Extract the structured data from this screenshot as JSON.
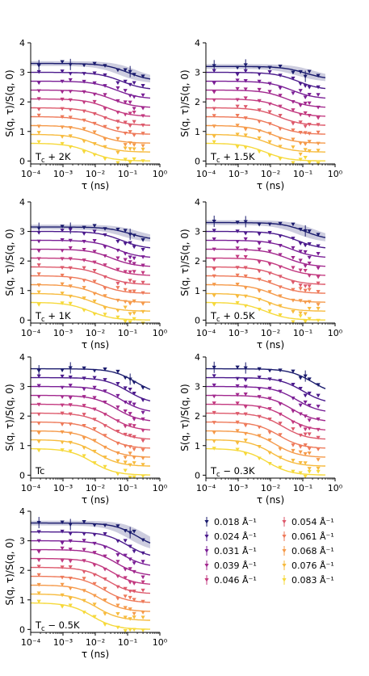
{
  "chart_data": {
    "type": "scatter",
    "xscale": "log",
    "xlim": [
      0.0001,
      1
    ],
    "ylim": [
      -0.1,
      4
    ],
    "xlabel": "τ (ns)",
    "ylabel": "S(q, τ)/S(q, 0)",
    "x_ticks": [
      0.0001,
      0.001,
      0.01,
      0.1,
      1
    ],
    "x_tick_labels": [
      "10⁻⁴",
      "10⁻³",
      "10⁻²",
      "10⁻¹",
      "10⁰"
    ],
    "y_ticks": [
      0,
      1,
      2,
      3,
      4
    ],
    "y_tick_labels": [
      "0",
      "1",
      "2",
      "3",
      "4"
    ],
    "tau_points": [
      0.00018,
      0.00095,
      0.0017,
      0.0045,
      0.0095,
      0.02,
      0.05,
      0.085,
      0.12,
      0.16,
      0.3
    ],
    "legend": {
      "placement": "bottom-right",
      "columns": 2,
      "entries": [
        "0.018 Å⁻¹",
        "0.024 Å⁻¹",
        "0.031 Å⁻¹",
        "0.039 Å⁻¹",
        "0.046 Å⁻¹",
        "0.054 Å⁻¹",
        "0.061 Å⁻¹",
        "0.068 Å⁻¹",
        "0.076 Å⁻¹",
        "0.083 Å⁻¹"
      ],
      "colors": [
        "#1b1c6e",
        "#4b1a8c",
        "#7a1f96",
        "#a2288e",
        "#c33a80",
        "#dd5a6c",
        "#ee7a5a",
        "#f59a4a",
        "#f7bb3e",
        "#f6d93b"
      ]
    },
    "series_q": [
      0.018,
      0.024,
      0.031,
      0.039,
      0.046,
      0.054,
      0.061,
      0.068,
      0.076,
      0.083
    ],
    "panels": [
      {
        "label": "T_c + 2K",
        "label_parts": [
          "T",
          "c",
          " + 2K"
        ],
        "offsets": [
          2.7,
          2.4,
          2.1,
          1.8,
          1.5,
          1.2,
          0.9,
          0.6,
          0.3,
          0.0
        ],
        "amplitudes": [
          0.6,
          0.6,
          0.6,
          0.6,
          0.6,
          0.6,
          0.6,
          0.6,
          0.6,
          0.6
        ],
        "tau_relax": [
          0.1,
          0.065,
          0.045,
          0.032,
          0.024,
          0.018,
          0.014,
          0.011,
          0.009,
          0.007
        ],
        "band_series": 0
      },
      {
        "label": "T_c + 1.5K",
        "label_parts": [
          "T",
          "c",
          " + 1.5K"
        ],
        "offsets": [
          2.75,
          2.4,
          2.1,
          1.8,
          1.5,
          1.2,
          0.9,
          0.6,
          0.3,
          0.0
        ],
        "amplitudes": [
          0.45,
          0.6,
          0.6,
          0.6,
          0.6,
          0.6,
          0.6,
          0.6,
          0.6,
          0.6
        ],
        "tau_relax": [
          0.12,
          0.07,
          0.045,
          0.032,
          0.024,
          0.018,
          0.014,
          0.011,
          0.009,
          0.007
        ],
        "band_series": 0
      },
      {
        "label": "T_c + 1K",
        "label_parts": [
          "T",
          "c",
          " + 1K"
        ],
        "offsets": [
          2.7,
          2.4,
          2.1,
          1.8,
          1.5,
          1.2,
          0.9,
          0.6,
          0.3,
          0.0
        ],
        "amplitudes": [
          0.45,
          0.6,
          0.6,
          0.6,
          0.6,
          0.6,
          0.6,
          0.6,
          0.6,
          0.6
        ],
        "tau_relax": [
          0.12,
          0.065,
          0.045,
          0.032,
          0.024,
          0.018,
          0.014,
          0.011,
          0.009,
          0.007
        ],
        "band_series": 0
      },
      {
        "label": "T_c + 0.5K",
        "label_parts": [
          "T",
          "c",
          " + 0.5K"
        ],
        "offsets": [
          2.7,
          2.4,
          2.1,
          1.8,
          1.5,
          1.2,
          0.9,
          0.6,
          0.3,
          0.0
        ],
        "amplitudes": [
          0.6,
          0.6,
          0.6,
          0.6,
          0.6,
          0.6,
          0.6,
          0.6,
          0.6,
          0.6
        ],
        "tau_relax": [
          0.12,
          0.065,
          0.045,
          0.032,
          0.024,
          0.018,
          0.014,
          0.011,
          0.009,
          0.007
        ],
        "band_series": 0
      },
      {
        "label": "Tc",
        "label_parts": [
          "Tc",
          "",
          ""
        ],
        "offsets": [
          2.7,
          2.4,
          2.1,
          1.8,
          1.5,
          1.2,
          0.9,
          0.6,
          0.3,
          0.0
        ],
        "amplitudes": [
          0.9,
          0.9,
          0.9,
          0.9,
          0.9,
          0.9,
          0.9,
          0.9,
          0.9,
          0.9
        ],
        "tau_relax": [
          0.18,
          0.1,
          0.065,
          0.045,
          0.032,
          0.024,
          0.018,
          0.014,
          0.011,
          0.008
        ],
        "band_series": null
      },
      {
        "label": "T_c − 0.3K",
        "label_parts": [
          "T",
          "c",
          " − 0.3K"
        ],
        "offsets": [
          2.7,
          2.4,
          2.1,
          1.8,
          1.5,
          1.2,
          0.9,
          0.6,
          0.3,
          0.0
        ],
        "amplitudes": [
          0.9,
          0.9,
          0.9,
          0.9,
          0.9,
          0.9,
          0.9,
          0.9,
          0.9,
          0.9
        ],
        "tau_relax": [
          0.2,
          0.1,
          0.065,
          0.045,
          0.032,
          0.024,
          0.018,
          0.014,
          0.011,
          0.008
        ],
        "band_series": null
      },
      {
        "label": "T_c − 0.5K",
        "label_parts": [
          "T",
          "c",
          " − 0.5K"
        ],
        "offsets": [
          2.7,
          2.4,
          2.1,
          1.8,
          1.5,
          1.2,
          0.9,
          0.6,
          0.3,
          0.0
        ],
        "amplitudes": [
          0.9,
          0.9,
          0.9,
          0.9,
          0.9,
          0.9,
          0.9,
          0.9,
          0.9,
          0.9
        ],
        "tau_relax": [
          0.2,
          0.1,
          0.065,
          0.045,
          0.032,
          0.024,
          0.018,
          0.014,
          0.011,
          0.008
        ],
        "band_series": 0
      }
    ]
  }
}
